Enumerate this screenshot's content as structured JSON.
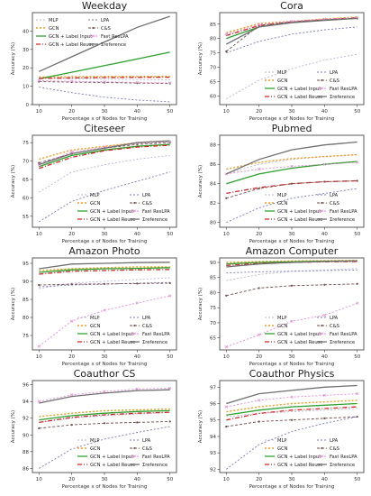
{
  "page": {
    "shared_ylabel": "Accuracy (%)",
    "shared_xlabel": "Percentage x of Nodes for Training",
    "shared_x_ticks": [
      10,
      20,
      30,
      40,
      50
    ]
  },
  "series_meta": [
    {
      "key": "mlp",
      "name": "MLP",
      "color": "#b7b5d9",
      "dash": "2,2",
      "width": 0.9,
      "marker": "none"
    },
    {
      "key": "gcn",
      "name": "GCN",
      "color": "#f39c1b",
      "dash": "2,2",
      "width": 1.4,
      "marker": "none"
    },
    {
      "key": "gcn_li",
      "name": "GCN + Label Input",
      "color": "#2ca02c",
      "dash": "",
      "width": 1.3,
      "marker": "none"
    },
    {
      "key": "gcn_lr",
      "name": "GCN + Label Reuse",
      "color": "#d62728",
      "dash": "5,2,1,2",
      "width": 1.3,
      "marker": "none"
    },
    {
      "key": "lpa",
      "name": "LPA",
      "color": "#7779b5",
      "dash": "2,2",
      "width": 0.9,
      "marker": "none"
    },
    {
      "key": "cs",
      "name": "C&S",
      "color": "#6e4e4e",
      "dash": "3,2",
      "width": 0.9,
      "marker": "dot"
    },
    {
      "key": "fast",
      "name": "Fast ResLPA",
      "color": "#e58ad4",
      "dash": "2,2",
      "width": 0.9,
      "marker": "cross"
    },
    {
      "key": "ours",
      "name": "Σreference",
      "color": "#6f6f6f",
      "dash": "",
      "width": 1.3,
      "marker": "none"
    }
  ],
  "chart_data": [
    {
      "type": "line",
      "title": "Weekday",
      "x": [
        10,
        20,
        30,
        40,
        50
      ],
      "ylim": [
        0,
        50
      ],
      "yticks": [
        0,
        10,
        20,
        30,
        40
      ],
      "legend": "top-left",
      "series": [
        {
          "name": "MLP",
          "values": [
            14.5,
            14.0,
            13.8,
            13.6,
            13.5
          ]
        },
        {
          "name": "GCN",
          "values": [
            15.0,
            15.2,
            15.3,
            15.3,
            15.4
          ]
        },
        {
          "name": "GCN + Label Input",
          "values": [
            14.0,
            17.6,
            21.2,
            24.8,
            28.5
          ]
        },
        {
          "name": "GCN + Label Reuse",
          "values": [
            14.2,
            14.5,
            14.7,
            14.8,
            14.9
          ]
        },
        {
          "name": "LPA",
          "values": [
            9.5,
            6.5,
            4.0,
            2.5,
            1.5
          ]
        },
        {
          "name": "C&S",
          "values": [
            12.5,
            12.2,
            12.0,
            11.7,
            11.5
          ]
        },
        {
          "name": "Fast ResLPA",
          "values": [
            13.0,
            12.7,
            12.4,
            12.0,
            11.8
          ]
        },
        {
          "name": "Σreference",
          "values": [
            18.0,
            26.0,
            34.0,
            42.0,
            48.0
          ]
        }
      ]
    },
    {
      "type": "line",
      "title": "Cora",
      "x": [
        10,
        20,
        30,
        40,
        50
      ],
      "ylim": [
        57,
        89
      ],
      "yticks": [
        60,
        65,
        70,
        75,
        80,
        85
      ],
      "legend": "bottom-right",
      "series": [
        {
          "name": "MLP",
          "values": [
            59.0,
            65.5,
            69.5,
            72.5,
            74.5
          ]
        },
        {
          "name": "GCN",
          "values": [
            82.0,
            85.2,
            86.0,
            86.8,
            87.5
          ]
        },
        {
          "name": "GCN + Label Input",
          "values": [
            80.0,
            84.0,
            85.6,
            86.5,
            87.0
          ]
        },
        {
          "name": "GCN + Label Reuse",
          "values": [
            81.0,
            84.5,
            85.8,
            86.6,
            87.2
          ]
        },
        {
          "name": "LPA",
          "values": [
            75.0,
            79.0,
            81.5,
            83.0,
            84.0
          ]
        },
        {
          "name": "C&S",
          "values": [
            75.5,
            84.5,
            85.8,
            86.5,
            87.0
          ]
        },
        {
          "name": "Fast ResLPA",
          "values": [
            81.5,
            84.8,
            86.0,
            86.7,
            87.3
          ]
        },
        {
          "name": "Σreference",
          "values": [
            78.0,
            84.0,
            85.5,
            86.3,
            87.0
          ]
        }
      ]
    },
    {
      "type": "line",
      "title": "Citeseer",
      "x": [
        10,
        20,
        30,
        40,
        50
      ],
      "ylim": [
        52,
        77
      ],
      "yticks": [
        55,
        60,
        65,
        70,
        75
      ],
      "legend": "bottom-right",
      "series": [
        {
          "name": "MLP",
          "values": [
            61.5,
            67.0,
            69.0,
            70.5,
            71.5
          ]
        },
        {
          "name": "GCN",
          "values": [
            70.5,
            73.0,
            74.0,
            75.0,
            75.5
          ]
        },
        {
          "name": "GCN + Label Input",
          "values": [
            68.5,
            71.5,
            73.0,
            74.0,
            74.5
          ]
        },
        {
          "name": "GCN + Label Reuse",
          "values": [
            68.0,
            71.0,
            72.8,
            73.8,
            74.3
          ]
        },
        {
          "name": "LPA",
          "values": [
            53.5,
            59.0,
            62.0,
            64.5,
            67.0
          ]
        },
        {
          "name": "C&S",
          "values": [
            69.5,
            72.0,
            73.5,
            74.5,
            75.0
          ]
        },
        {
          "name": "Fast ResLPA",
          "values": [
            69.0,
            72.5,
            73.8,
            74.8,
            75.2
          ]
        },
        {
          "name": "Σreference",
          "values": [
            69.0,
            72.0,
            73.5,
            75.0,
            75.5
          ]
        }
      ]
    },
    {
      "type": "line",
      "title": "Pubmed",
      "x": [
        10,
        20,
        30,
        40,
        50
      ],
      "ylim": [
        79.5,
        89
      ],
      "yticks": [
        80,
        82,
        84,
        86,
        88
      ],
      "legend": "bottom-right",
      "series": [
        {
          "name": "MLP",
          "values": [
            85.0,
            86.0,
            86.5,
            86.8,
            87.0
          ]
        },
        {
          "name": "GCN",
          "values": [
            85.5,
            86.2,
            86.6,
            86.8,
            87.0
          ]
        },
        {
          "name": "GCN + Label Input",
          "values": [
            84.0,
            85.0,
            85.6,
            86.0,
            86.3
          ]
        },
        {
          "name": "GCN + Label Reuse",
          "values": [
            83.0,
            83.6,
            84.0,
            84.2,
            84.3
          ]
        },
        {
          "name": "LPA",
          "values": [
            80.0,
            81.5,
            82.5,
            83.0,
            83.5
          ]
        },
        {
          "name": "C&S",
          "values": [
            82.5,
            83.5,
            84.0,
            84.2,
            84.3
          ]
        },
        {
          "name": "Fast ResLPA",
          "values": [
            85.0,
            85.5,
            85.8,
            86.0,
            86.2
          ]
        },
        {
          "name": "Σreference",
          "values": [
            85.0,
            86.5,
            87.5,
            88.0,
            88.3
          ]
        }
      ]
    },
    {
      "type": "line",
      "title": "Amazon Photo",
      "x": [
        10,
        20,
        30,
        40,
        50
      ],
      "ylim": [
        71,
        96.5
      ],
      "yticks": [
        75,
        80,
        85,
        90,
        95
      ],
      "legend": "bottom-right",
      "series": [
        {
          "name": "MLP",
          "values": [
            88.0,
            89.5,
            90.0,
            90.5,
            91.0
          ]
        },
        {
          "name": "GCN",
          "values": [
            93.0,
            93.5,
            93.8,
            94.0,
            94.0
          ]
        },
        {
          "name": "GCN + Label Input",
          "values": [
            92.5,
            93.2,
            93.5,
            93.6,
            93.8
          ]
        },
        {
          "name": "GCN + Label Reuse",
          "values": [
            92.0,
            92.8,
            93.0,
            93.2,
            93.3
          ]
        },
        {
          "name": "LPA",
          "values": [
            88.5,
            89.0,
            89.2,
            89.5,
            89.7
          ]
        },
        {
          "name": "C&S",
          "values": [
            89.0,
            89.2,
            89.3,
            89.4,
            89.5
          ]
        },
        {
          "name": "Fast ResLPA",
          "values": [
            72.0,
            79.0,
            82.0,
            84.0,
            86.0
          ]
        },
        {
          "name": "Σreference",
          "values": [
            93.5,
            94.8,
            95.0,
            95.2,
            95.3
          ]
        }
      ]
    },
    {
      "type": "line",
      "title": "Amazon Computer",
      "x": [
        10,
        20,
        30,
        40,
        50
      ],
      "ylim": [
        61,
        91.5
      ],
      "yticks": [
        65,
        70,
        75,
        80,
        85,
        90
      ],
      "legend": "bottom-right",
      "series": [
        {
          "name": "MLP",
          "values": [
            84.0,
            86.0,
            87.0,
            87.5,
            88.0
          ]
        },
        {
          "name": "GCN",
          "values": [
            90.0,
            90.3,
            90.5,
            90.6,
            90.7
          ]
        },
        {
          "name": "GCN + Label Input",
          "values": [
            89.5,
            90.0,
            90.2,
            90.4,
            90.5
          ]
        },
        {
          "name": "GCN + Label Reuse",
          "values": [
            89.0,
            89.7,
            90.0,
            90.2,
            90.3
          ]
        },
        {
          "name": "LPA",
          "values": [
            86.5,
            86.9,
            87.1,
            87.3,
            87.5
          ]
        },
        {
          "name": "C&S",
          "values": [
            79.0,
            81.5,
            82.3,
            82.6,
            82.9
          ]
        },
        {
          "name": "Fast ResLPA",
          "values": [
            62.0,
            66.0,
            70.5,
            72.5,
            76.5
          ]
        },
        {
          "name": "Σreference",
          "values": [
            88.5,
            89.5,
            90.0,
            90.3,
            90.5
          ]
        }
      ]
    },
    {
      "type": "line",
      "title": "Coauthor CS",
      "x": [
        10,
        20,
        30,
        40,
        50
      ],
      "ylim": [
        85.5,
        96.5
      ],
      "yticks": [
        86,
        88,
        90,
        92,
        94,
        96
      ],
      "legend": "bottom-right",
      "series": [
        {
          "name": "MLP",
          "values": [
            91.5,
            92.0,
            92.3,
            92.5,
            92.7
          ]
        },
        {
          "name": "GCN",
          "values": [
            92.2,
            92.6,
            92.9,
            93.0,
            93.1
          ]
        },
        {
          "name": "GCN + Label Input",
          "values": [
            91.8,
            92.3,
            92.6,
            92.8,
            92.9
          ]
        },
        {
          "name": "GCN + Label Reuse",
          "values": [
            91.5,
            92.1,
            92.4,
            92.6,
            92.7
          ]
        },
        {
          "name": "LPA",
          "values": [
            86.0,
            88.3,
            89.5,
            90.3,
            91.0
          ]
        },
        {
          "name": "C&S",
          "values": [
            90.8,
            91.2,
            91.4,
            91.5,
            91.6
          ]
        },
        {
          "name": "Fast ResLPA",
          "values": [
            94.0,
            94.8,
            95.2,
            95.5,
            95.6
          ]
        },
        {
          "name": "Σreference",
          "values": [
            93.8,
            94.6,
            95.0,
            95.3,
            95.4
          ]
        }
      ]
    },
    {
      "type": "line",
      "title": "Coauthor Physics",
      "x": [
        10,
        20,
        30,
        40,
        50
      ],
      "ylim": [
        91.8,
        97.4
      ],
      "yticks": [
        92,
        93,
        94,
        95,
        96,
        97
      ],
      "legend": "bottom-right",
      "series": [
        {
          "name": "MLP",
          "values": [
            95.2,
            95.4,
            95.5,
            95.6,
            95.7
          ]
        },
        {
          "name": "GCN",
          "values": [
            95.5,
            95.8,
            96.0,
            96.1,
            96.2
          ]
        },
        {
          "name": "GCN + Label Input",
          "values": [
            95.3,
            95.6,
            95.8,
            95.9,
            96.0
          ]
        },
        {
          "name": "GCN + Label Reuse",
          "values": [
            95.0,
            95.4,
            95.6,
            95.7,
            95.8
          ]
        },
        {
          "name": "LPA",
          "values": [
            92.0,
            93.5,
            94.3,
            94.8,
            95.2
          ]
        },
        {
          "name": "C&S",
          "values": [
            94.6,
            94.9,
            95.0,
            95.1,
            95.2
          ]
        },
        {
          "name": "Fast ResLPA",
          "values": [
            95.8,
            96.2,
            96.4,
            96.5,
            96.6
          ]
        },
        {
          "name": "Σreference",
          "values": [
            96.0,
            96.6,
            96.8,
            97.0,
            97.1
          ]
        }
      ]
    }
  ]
}
